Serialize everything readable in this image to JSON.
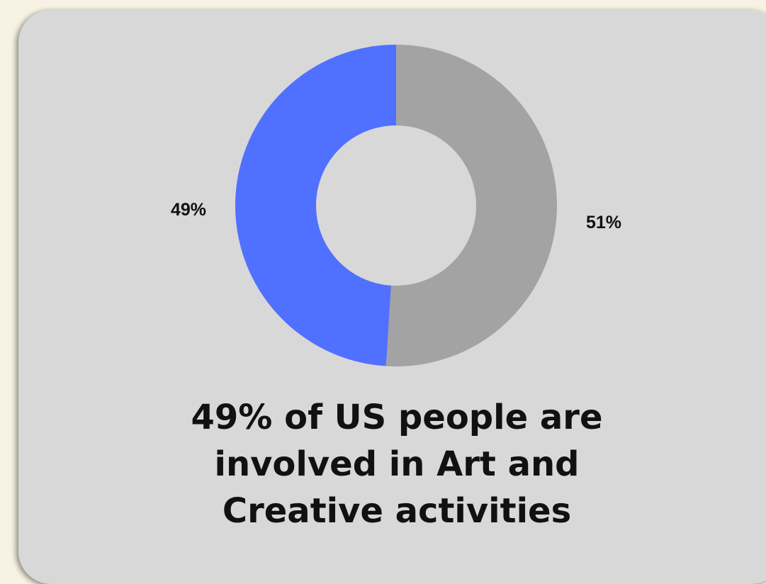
{
  "chart_data": {
    "type": "pie",
    "donut": true,
    "slices": [
      {
        "label": "49%",
        "value": 49,
        "color": "#5070ff"
      },
      {
        "label": "51%",
        "value": 51,
        "color": "#a3a3a3"
      }
    ]
  },
  "caption": {
    "line1": "49% of US people are",
    "line2": "involved in Art and",
    "line3": "Creative activities"
  },
  "colors": {
    "card_background": "#d8d8d8",
    "page_background": "#f7f2e3",
    "text": "#111111"
  }
}
